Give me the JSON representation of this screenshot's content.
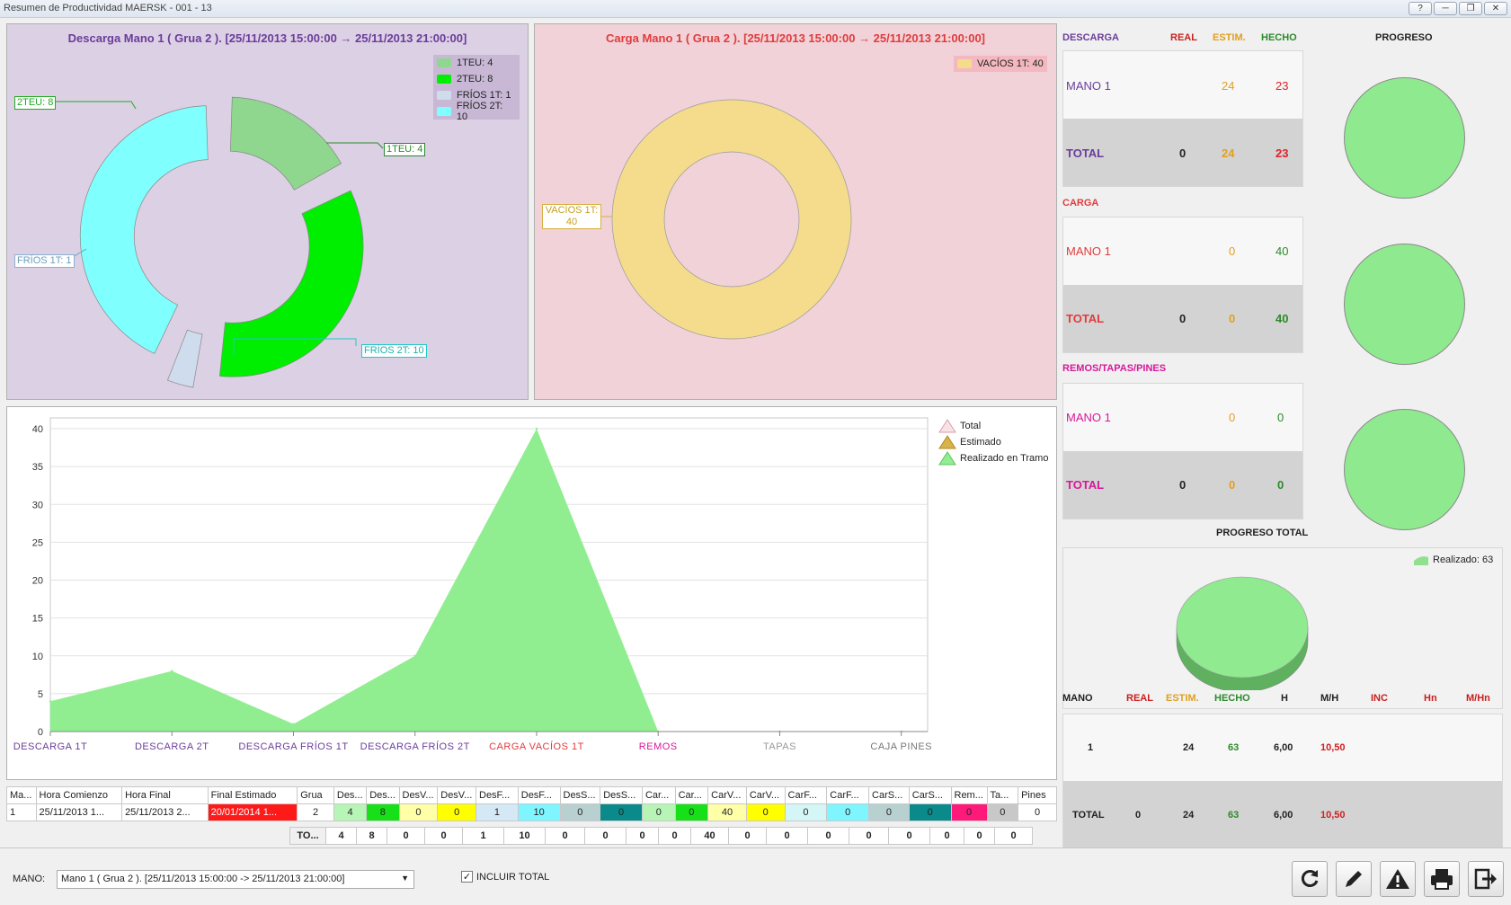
{
  "window": {
    "title": "Resumen de Productividad MAERSK - 001 - 13",
    "btn_help": "?",
    "btn_min": "─",
    "btn_restore": "❐",
    "btn_close": "✕"
  },
  "descarga_chart": {
    "title": "Descarga Mano 1 ( Grua 2 ). [25/11/2013 15:00:00 → 25/11/2013 21:00:00]",
    "legend": [
      {
        "label": "1TEU: 4",
        "color": "#8fd68f"
      },
      {
        "label": "2TEU: 8",
        "color": "#00ee00"
      },
      {
        "label": "FRÍOS 1T: 1",
        "color": "#cfdcee"
      },
      {
        "label": "FRÍOS 2T: 10",
        "color": "#80ffff"
      }
    ],
    "callouts": {
      "c2teu": "2TEU: 8",
      "c1teu": "1TEU: 4",
      "cfrios1": "FRÍOS 1T: 1",
      "cfrios2": "FRÍOS 2T: 10"
    },
    "chart_data": {
      "type": "pie",
      "categories": [
        "1TEU",
        "2TEU",
        "FRÍOS 1T",
        "FRÍOS 2T"
      ],
      "values": [
        4,
        8,
        1,
        10
      ]
    }
  },
  "carga_chart": {
    "title": "Carga Mano 1 ( Grua 2 ). [25/11/2013 15:00:00 → 25/11/2013 21:00:00]",
    "legend": [
      {
        "label": "VACÍOS 1T: 40",
        "color": "#f5dc8c"
      }
    ],
    "callout": "VACÍOS 1T: 40",
    "chart_data": {
      "type": "pie",
      "categories": [
        "VACÍOS 1T"
      ],
      "values": [
        40
      ]
    }
  },
  "area_chart": {
    "legend": [
      {
        "label": "Total",
        "color": "#f4d4d8"
      },
      {
        "label": "Estimado",
        "color": "#d9b24a"
      },
      {
        "label": "Realizado en Tramo",
        "color": "#90ee90"
      }
    ],
    "y_ticks": [
      "0",
      "5",
      "10",
      "15",
      "20",
      "25",
      "30",
      "35",
      "40"
    ],
    "x_labels": [
      {
        "t": "DESCARGA 1T",
        "c": "#6a3d9a"
      },
      {
        "t": "DESCARGA 2T",
        "c": "#6a3d9a"
      },
      {
        "t": "DESCARGA FRÍOS 1T",
        "c": "#6a3d9a"
      },
      {
        "t": "DESCARGA FRÍOS 2T",
        "c": "#6a3d9a"
      },
      {
        "t": "CARGA VACÍOS 1T",
        "c": "#e03c3c"
      },
      {
        "t": "REMOS",
        "c": "#d8189a"
      },
      {
        "t": "TAPAS",
        "c": "#999999"
      },
      {
        "t": "CAJA PINES",
        "c": "#777777"
      }
    ],
    "chart_data": {
      "type": "area",
      "categories": [
        "DESCARGA 1T",
        "DESCARGA 2T",
        "DESCARGA FRÍOS 1T",
        "DESCARGA FRÍOS 2T",
        "CARGA VACÍOS 1T",
        "REMOS",
        "TAPAS",
        "CAJA PINES"
      ],
      "series": [
        {
          "name": "Realizado en Tramo",
          "values": [
            4,
            8,
            1,
            10,
            40,
            0,
            0,
            0
          ]
        }
      ],
      "ylim": [
        0,
        40
      ]
    }
  },
  "summary": {
    "headers": {
      "real": "REAL",
      "estim": "ESTIM.",
      "hecho": "HECHO",
      "progreso": "PROGRESO"
    },
    "sections": [
      {
        "name": "DESCARGA",
        "color": "#6a3d9a",
        "mano": "MANO 1",
        "mano_estim": "24",
        "mano_hecho": "23",
        "total": "TOTAL",
        "total_real": "0",
        "total_estim": "24",
        "total_hecho": "23",
        "hecho_color": "#e0202a"
      },
      {
        "name": "CARGA",
        "color": "#e03c3c",
        "mano": "MANO 1",
        "mano_estim": "0",
        "mano_hecho": "40",
        "total": "TOTAL",
        "total_real": "0",
        "total_estim": "0",
        "total_hecho": "40",
        "hecho_color": "#2f8f2f"
      },
      {
        "name": "REMOS/TAPAS/PINES",
        "color": "#d8189a",
        "mano": "MANO 1",
        "mano_estim": "0",
        "mano_hecho": "0",
        "total": "TOTAL",
        "total_real": "0",
        "total_estim": "0",
        "total_hecho": "0",
        "hecho_color": "#2f8f2f"
      }
    ],
    "progreso_total": "PROGRESO TOTAL",
    "realizado_legend": "Realizado: 63"
  },
  "bottom_table": {
    "headers": [
      "MANO",
      "REAL",
      "ESTIM.",
      "HECHO",
      "H",
      "M/H",
      "INC",
      "Hn",
      "M/Hn"
    ],
    "row": {
      "mano": "1",
      "real": "",
      "estim": "24",
      "hecho": "63",
      "h": "6,00",
      "mh": "10,50"
    },
    "total": {
      "mano": "TOTAL",
      "real": "0",
      "estim": "24",
      "hecho": "63",
      "h": "6,00",
      "mh": "10,50"
    }
  },
  "grid": {
    "headers": [
      "Ma...",
      "Hora Comienzo",
      "Hora Final",
      "Final Estimado",
      "Grua",
      "Des...",
      "Des...",
      "DesV...",
      "DesV...",
      "DesF...",
      "DesF...",
      "DesS...",
      "DesS...",
      "Car...",
      "Car...",
      "CarV...",
      "CarV...",
      "CarF...",
      "CarF...",
      "CarS...",
      "CarS...",
      "Rem...",
      "Ta...",
      "Pines"
    ],
    "row": [
      "1",
      "25/11/2013 1...",
      "25/11/2013 2...",
      "20/01/2014 1...",
      "2",
      "4",
      "8",
      "0",
      "0",
      "1",
      "10",
      "0",
      "0",
      "0",
      "0",
      "40",
      "0",
      "0",
      "0",
      "0",
      "0",
      "0",
      "0",
      "0"
    ],
    "row_colors": [
      "#fff",
      "#fff",
      "#fff",
      "#ff1a1a",
      "#fff",
      "#b7f5b7",
      "#18e018",
      "#ffffa8",
      "#ffff00",
      "#d4e8f6",
      "#7ff5ff",
      "#b8d0d0",
      "#0a8a8a",
      "#b7f5b7",
      "#18e018",
      "#ffffa8",
      "#ffff00",
      "#d4f6f6",
      "#7ff5ff",
      "#b8d0d0",
      "#0a8a8a",
      "#ff1a7a",
      "#c8c8c8",
      "#fff"
    ],
    "totals_label": "TO...",
    "totals": [
      "4",
      "8",
      "0",
      "0",
      "1",
      "10",
      "0",
      "0",
      "0",
      "0",
      "40",
      "0",
      "0",
      "0",
      "0",
      "0",
      "0",
      "0",
      "0"
    ]
  },
  "footer": {
    "mano_label": "MANO:",
    "mano_value": "Mano 1 ( Grua 2 ). [25/11/2013 15:00:00 -> 25/11/2013 21:00:00]",
    "incluir_total": "INCLUIR TOTAL",
    "buttons": [
      "refresh-icon",
      "edit-icon",
      "warning-icon",
      "print-icon",
      "exit-icon"
    ]
  }
}
